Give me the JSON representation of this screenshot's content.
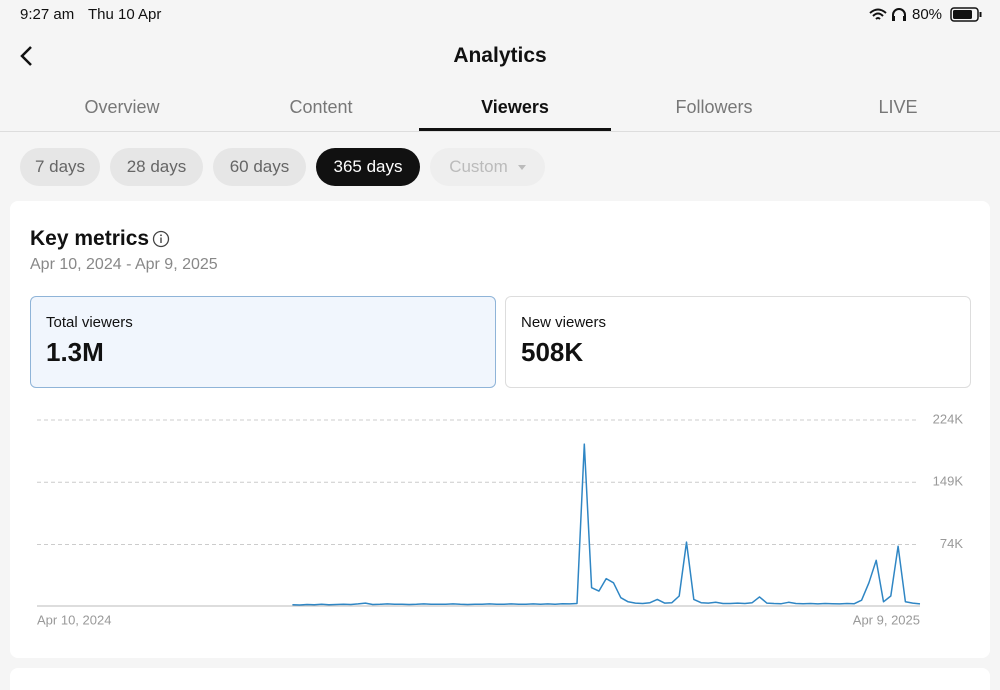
{
  "status_bar": {
    "time": "9:27 am",
    "date": "Thu 10 Apr",
    "battery": "80%"
  },
  "header": {
    "title": "Analytics"
  },
  "tabs": {
    "items": [
      "Overview",
      "Content",
      "Viewers",
      "Followers",
      "LIVE"
    ],
    "active": 2
  },
  "ranges": {
    "items": [
      "7 days",
      "28 days",
      "60 days",
      "365 days",
      "Custom"
    ],
    "active": 3
  },
  "card": {
    "title": "Key metrics",
    "date_range": "Apr 10, 2024 - Apr 9, 2025",
    "metrics": [
      {
        "label": "Total viewers",
        "value": "1.3M"
      },
      {
        "label": "New viewers",
        "value": "508K"
      }
    ]
  },
  "chart_data": {
    "type": "line",
    "color": "#2f86c4",
    "grid": true,
    "ylim": [
      0,
      224000
    ],
    "yticks": [
      {
        "value": 224000,
        "label": "224K"
      },
      {
        "value": 149000,
        "label": "149K"
      },
      {
        "value": 74000,
        "label": "74K"
      }
    ],
    "categories": [
      "Apr 10, 2024",
      null,
      null,
      null,
      null,
      null,
      null,
      null,
      null,
      null,
      null,
      null,
      null,
      null,
      null,
      null,
      null,
      null,
      null,
      null,
      null,
      null,
      null,
      null,
      null,
      null,
      null,
      null,
      null,
      null,
      null,
      null,
      null,
      null,
      null,
      null,
      null,
      null,
      null,
      null,
      null,
      null,
      null,
      null,
      null,
      null,
      null,
      null,
      null,
      null,
      null,
      null,
      null,
      null,
      null,
      null,
      null,
      null,
      null,
      null,
      null,
      null,
      null,
      null,
      null,
      null,
      null,
      null,
      null,
      null,
      null,
      null,
      null,
      null,
      null,
      null,
      null,
      null,
      null,
      null,
      null,
      null,
      null,
      null,
      null,
      null,
      null,
      null,
      null,
      null,
      null,
      null,
      null,
      null,
      null,
      null,
      null,
      null,
      null,
      null,
      null,
      null,
      null,
      null,
      null,
      null,
      null,
      null,
      null,
      null,
      null,
      null,
      null,
      null,
      null,
      null,
      null,
      null,
      null,
      null,
      null,
      "Apr 9, 2025"
    ],
    "values": [
      null,
      null,
      null,
      null,
      null,
      null,
      null,
      null,
      null,
      null,
      null,
      null,
      null,
      null,
      null,
      null,
      null,
      null,
      null,
      null,
      null,
      null,
      null,
      null,
      null,
      null,
      null,
      null,
      null,
      null,
      null,
      null,
      null,
      null,
      null,
      1500,
      1200,
      1800,
      1500,
      2000,
      1500,
      1800,
      2200,
      1800,
      2500,
      3500,
      1800,
      2000,
      2500,
      2000,
      2200,
      1800,
      2000,
      2500,
      2000,
      2200,
      2000,
      2500,
      2000,
      1800,
      2200,
      2000,
      2500,
      2000,
      2200,
      2500,
      2000,
      2200,
      2500,
      2000,
      2500,
      2200,
      2800,
      2500,
      3000,
      195000,
      22000,
      18000,
      33000,
      28000,
      10000,
      5000,
      3500,
      3000,
      4000,
      8000,
      3500,
      4000,
      12000,
      77000,
      8000,
      4000,
      3500,
      4500,
      3000,
      3000,
      3500,
      3000,
      4000,
      11000,
      3500,
      3000,
      2800,
      4500,
      3000,
      2800,
      3000,
      2500,
      3000,
      2800,
      2500,
      3000,
      2800,
      7000,
      28000,
      55000,
      5000,
      12000,
      72000,
      5000,
      3500,
      2500
    ]
  }
}
